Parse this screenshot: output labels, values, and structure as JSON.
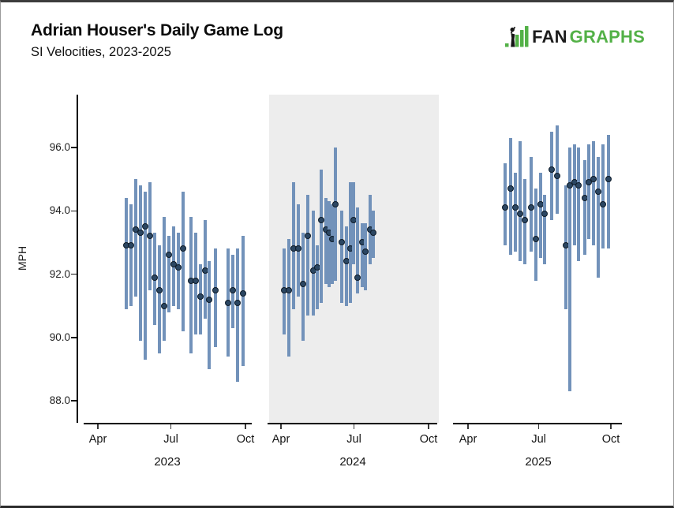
{
  "page": {
    "title": "Adrian Houser's Daily Game Log",
    "subtitle": "SI Velocities, 2023-2025"
  },
  "logo": {
    "fan_text": "FAN",
    "graphs_text": "GRAPHS",
    "fan_color": "#1c1c1c",
    "graphs_color": "#53b147"
  },
  "chart_data": {
    "type": "scatter",
    "subtype": "daily-velocity-range-bars",
    "title": "Adrian Houser's Daily Game Log",
    "subtitle": "SI Velocities, 2023-2025",
    "ylabel": "MPH",
    "ylim": [
      87.3,
      97.7
    ],
    "grid": false,
    "legend": "none",
    "yticks": [
      {
        "label": "96.0",
        "value": 96.0
      },
      {
        "label": "94.0",
        "value": 94.0
      },
      {
        "label": "92.0",
        "value": 92.0
      },
      {
        "label": "90.0",
        "value": 90.0
      },
      {
        "label": "88.0",
        "value": 88.0
      }
    ],
    "month_ticks": [
      {
        "label": "Apr",
        "frac": 0.0
      },
      {
        "label": "Jul",
        "frac": 0.495
      },
      {
        "label": "Oct",
        "frac": 1.0
      }
    ],
    "colors": {
      "bar": "#7292ba",
      "point_fill": "#2b4662",
      "point_stroke": "#0e1b28",
      "panel_highlight": "#ededed",
      "axis": "#000000"
    },
    "panels": [
      {
        "year": "2023",
        "highlighted": false,
        "games": [
          {
            "x": 0.193,
            "min": 90.9,
            "avg": 92.9,
            "max": 94.4
          },
          {
            "x": 0.225,
            "min": 91.0,
            "avg": 92.9,
            "max": 94.2
          },
          {
            "x": 0.257,
            "min": 91.3,
            "avg": 93.4,
            "max": 95.0
          },
          {
            "x": 0.289,
            "min": 89.9,
            "avg": 93.3,
            "max": 94.8
          },
          {
            "x": 0.321,
            "min": 89.3,
            "avg": 93.5,
            "max": 94.6
          },
          {
            "x": 0.353,
            "min": 91.5,
            "avg": 93.2,
            "max": 94.9
          },
          {
            "x": 0.385,
            "min": 90.4,
            "avg": 91.9,
            "max": 93.3
          },
          {
            "x": 0.417,
            "min": 89.5,
            "avg": 91.5,
            "max": 92.9
          },
          {
            "x": 0.449,
            "min": 89.9,
            "avg": 91.0,
            "max": 93.8
          },
          {
            "x": 0.481,
            "min": 90.8,
            "avg": 92.6,
            "max": 93.2
          },
          {
            "x": 0.513,
            "min": 91.0,
            "avg": 92.3,
            "max": 93.5
          },
          {
            "x": 0.545,
            "min": 90.9,
            "avg": 92.2,
            "max": 93.3
          },
          {
            "x": 0.578,
            "min": 90.2,
            "avg": 92.8,
            "max": 94.6
          },
          {
            "x": 0.631,
            "min": 89.5,
            "avg": 91.8,
            "max": 93.8
          },
          {
            "x": 0.663,
            "min": 90.1,
            "avg": 91.8,
            "max": 93.3
          },
          {
            "x": 0.695,
            "min": 90.1,
            "avg": 91.3,
            "max": 92.3
          },
          {
            "x": 0.727,
            "min": 90.6,
            "avg": 92.1,
            "max": 93.7
          },
          {
            "x": 0.754,
            "min": 89.0,
            "avg": 91.2,
            "max": 92.4
          },
          {
            "x": 0.797,
            "min": 89.7,
            "avg": 91.5,
            "max": 92.8
          },
          {
            "x": 0.882,
            "min": 89.4,
            "avg": 91.1,
            "max": 92.8
          },
          {
            "x": 0.914,
            "min": 90.3,
            "avg": 91.5,
            "max": 92.6
          },
          {
            "x": 0.947,
            "min": 88.6,
            "avg": 91.1,
            "max": 92.8
          },
          {
            "x": 0.984,
            "min": 89.1,
            "avg": 91.4,
            "max": 93.2
          }
        ]
      },
      {
        "year": "2024",
        "highlighted": true,
        "games": [
          {
            "x": 0.021,
            "min": 90.1,
            "avg": 91.5,
            "max": 92.8
          },
          {
            "x": 0.053,
            "min": 89.4,
            "avg": 91.5,
            "max": 93.1
          },
          {
            "x": 0.086,
            "min": 90.9,
            "avg": 92.8,
            "max": 94.9
          },
          {
            "x": 0.118,
            "min": 91.3,
            "avg": 92.8,
            "max": 94.2
          },
          {
            "x": 0.15,
            "min": 89.9,
            "avg": 91.7,
            "max": 93.3
          },
          {
            "x": 0.182,
            "min": 90.7,
            "avg": 93.2,
            "max": 94.5
          },
          {
            "x": 0.219,
            "min": 90.7,
            "avg": 92.1,
            "max": 94.0
          },
          {
            "x": 0.246,
            "min": 90.9,
            "avg": 92.2,
            "max": 92.9
          },
          {
            "x": 0.273,
            "min": 91.1,
            "avg": 93.7,
            "max": 95.3
          },
          {
            "x": 0.305,
            "min": 91.7,
            "avg": 93.4,
            "max": 94.4
          },
          {
            "x": 0.326,
            "min": 91.6,
            "avg": 93.3,
            "max": 94.3
          },
          {
            "x": 0.348,
            "min": 91.7,
            "avg": 93.1,
            "max": 94.2
          },
          {
            "x": 0.369,
            "min": 91.8,
            "avg": 94.2,
            "max": 96.0
          },
          {
            "x": 0.412,
            "min": 91.1,
            "avg": 93.0,
            "max": 94.0
          },
          {
            "x": 0.444,
            "min": 91.0,
            "avg": 92.4,
            "max": 93.5
          },
          {
            "x": 0.471,
            "min": 91.1,
            "avg": 92.8,
            "max": 94.9
          },
          {
            "x": 0.492,
            "min": 92.3,
            "avg": 93.7,
            "max": 94.9
          },
          {
            "x": 0.519,
            "min": 91.4,
            "avg": 91.9,
            "max": 94.1
          },
          {
            "x": 0.551,
            "min": 91.6,
            "avg": 93.0,
            "max": 93.6
          },
          {
            "x": 0.572,
            "min": 91.5,
            "avg": 92.7,
            "max": 93.6
          },
          {
            "x": 0.604,
            "min": 92.3,
            "avg": 93.4,
            "max": 94.5
          },
          {
            "x": 0.626,
            "min": 92.5,
            "avg": 93.3,
            "max": 94.0
          }
        ]
      },
      {
        "year": "2025",
        "highlighted": false,
        "games": [
          {
            "x": 0.26,
            "min": 92.9,
            "avg": 94.1,
            "max": 95.5
          },
          {
            "x": 0.298,
            "min": 92.6,
            "avg": 94.7,
            "max": 96.3
          },
          {
            "x": 0.331,
            "min": 92.7,
            "avg": 94.1,
            "max": 95.2
          },
          {
            "x": 0.365,
            "min": 92.4,
            "avg": 93.9,
            "max": 96.2
          },
          {
            "x": 0.398,
            "min": 92.3,
            "avg": 93.7,
            "max": 95.0
          },
          {
            "x": 0.442,
            "min": 92.7,
            "avg": 94.1,
            "max": 95.7
          },
          {
            "x": 0.475,
            "min": 91.8,
            "avg": 93.1,
            "max": 94.7
          },
          {
            "x": 0.508,
            "min": 92.5,
            "avg": 94.2,
            "max": 95.2
          },
          {
            "x": 0.536,
            "min": 92.3,
            "avg": 93.9,
            "max": 94.5
          },
          {
            "x": 0.586,
            "min": 93.7,
            "avg": 95.3,
            "max": 96.5
          },
          {
            "x": 0.624,
            "min": 93.9,
            "avg": 95.1,
            "max": 96.7
          },
          {
            "x": 0.685,
            "min": 90.9,
            "avg": 92.9,
            "max": 94.8
          },
          {
            "x": 0.713,
            "min": 88.3,
            "avg": 94.8,
            "max": 96.0
          },
          {
            "x": 0.746,
            "min": 92.9,
            "avg": 94.9,
            "max": 96.1
          },
          {
            "x": 0.773,
            "min": 92.4,
            "avg": 94.8,
            "max": 96.0
          },
          {
            "x": 0.818,
            "min": 92.6,
            "avg": 94.4,
            "max": 95.6
          },
          {
            "x": 0.845,
            "min": 93.1,
            "avg": 94.9,
            "max": 96.1
          },
          {
            "x": 0.878,
            "min": 92.9,
            "avg": 95.0,
            "max": 96.2
          },
          {
            "x": 0.912,
            "min": 91.9,
            "avg": 94.6,
            "max": 95.7
          },
          {
            "x": 0.945,
            "min": 92.8,
            "avg": 94.2,
            "max": 96.1
          },
          {
            "x": 0.983,
            "min": 92.8,
            "avg": 95.0,
            "max": 96.4
          }
        ]
      }
    ]
  }
}
